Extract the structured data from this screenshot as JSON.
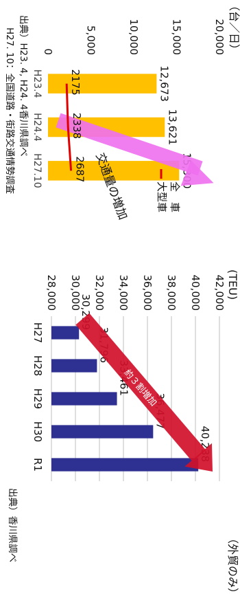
{
  "chart_data": [
    {
      "type": "bar",
      "unit_label": "（台／日）",
      "categories": [
        "H23.4",
        "H24.4",
        "H27.10"
      ],
      "series": [
        {
          "name": "全　車",
          "values": [
            12673,
            13621,
            15300
          ],
          "labels": [
            "12,673",
            "13,621",
            "15,300"
          ],
          "color": "#FFC000"
        },
        {
          "name": "大型車",
          "values": [
            2175,
            2338,
            2687
          ],
          "labels": [
            "2175",
            "2338",
            "2687"
          ],
          "color": "#E00000"
        }
      ],
      "ylim": [
        0,
        20000
      ],
      "yticks": [
        0,
        5000,
        10000,
        15000,
        20000
      ],
      "ytick_labels": [
        "0",
        "5,000",
        "10,000",
        "15,000",
        "20,000"
      ],
      "annotation": "交通量の増加",
      "source_lines": [
        "出典）H23. 4, H24. 4香川県調べ",
        "H27. 10：全国道路・街路交通情勢調査"
      ],
      "legend_position": "top-right"
    },
    {
      "type": "bar",
      "unit_label": "(TEU)",
      "scope_label": "（外貿のみ）",
      "categories": [
        "H27",
        "H28",
        "H29",
        "H30",
        "R1"
      ],
      "values": [
        30299,
        31796,
        33461,
        36477,
        40238
      ],
      "value_labels": [
        "30,299",
        "31,796",
        "33,461",
        "36,477",
        "40,238"
      ],
      "ylim": [
        28000,
        42000
      ],
      "yticks": [
        28000,
        30000,
        32000,
        34000,
        36000,
        38000,
        40000,
        42000
      ],
      "ytick_labels": [
        "28,000",
        "30,000",
        "32,000",
        "34,000",
        "36,000",
        "38,000",
        "40,000",
        "42,000"
      ],
      "annotation": "約３割増加",
      "source": "出典）香川県調べ",
      "color": "#2E3192"
    }
  ]
}
